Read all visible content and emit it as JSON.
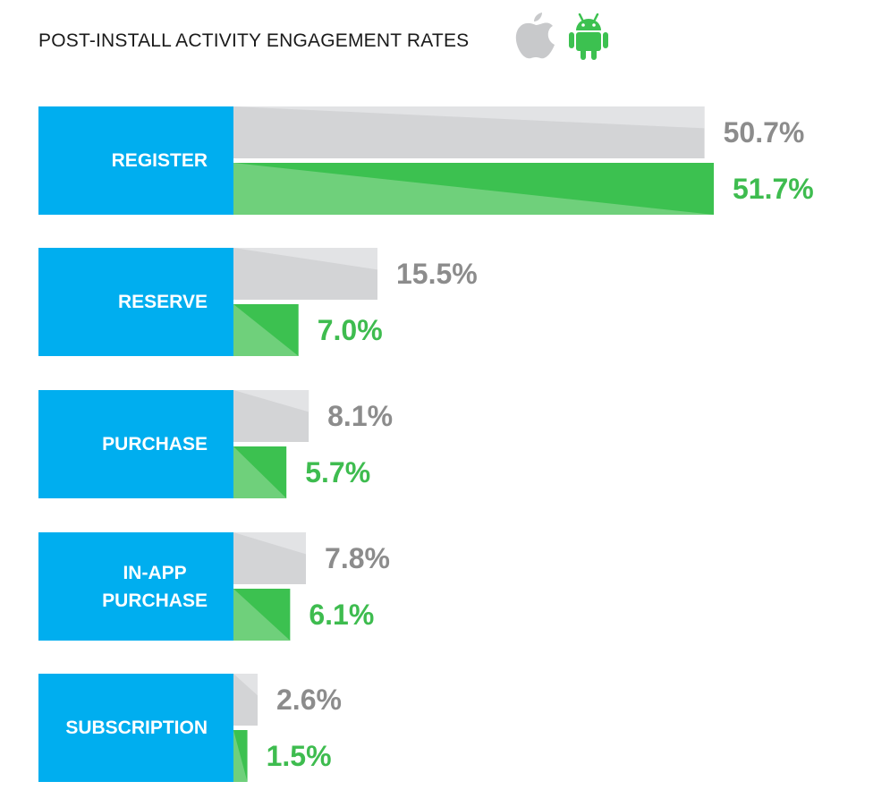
{
  "title": "POST-INSTALL ACTIVITY ENGAGEMENT RATES",
  "icons": {
    "ios": "apple-icon",
    "android": "android-icon"
  },
  "colors": {
    "label_bg": "#00aeef",
    "ios_bar": "#d3d4d6",
    "ios_bar_light": "#e2e3e5",
    "android_bar": "#3cc150",
    "android_bar_light": "#6fd07b",
    "ios_text": "#8c8c8c",
    "android_text": "#3ebc4f"
  },
  "chart_data": {
    "type": "bar",
    "title": "POST-INSTALL ACTIVITY ENGAGEMENT RATES",
    "orientation": "horizontal",
    "categories": [
      "REGISTER",
      "RESERVE",
      "PURCHASE",
      "IN-APP PURCHASE",
      "SUBSCRIPTION"
    ],
    "category_lines": [
      [
        "REGISTER"
      ],
      [
        "RESERVE"
      ],
      [
        "PURCHASE"
      ],
      [
        "IN-APP",
        "PURCHASE"
      ],
      [
        "SUBSCRIPTION"
      ]
    ],
    "series": [
      {
        "platform": "ios",
        "values": [
          50.7,
          15.5,
          8.1,
          7.8,
          2.6
        ],
        "labels": [
          "50.7%",
          "15.5%",
          "8.1%",
          "7.8%",
          "2.6%"
        ]
      },
      {
        "platform": "android",
        "values": [
          51.7,
          7.0,
          5.7,
          6.1,
          1.5
        ],
        "labels": [
          "51.7%",
          "7.0%",
          "5.7%",
          "6.1%",
          "1.5%"
        ]
      }
    ],
    "unit": "%",
    "xlim": [
      0,
      51.7
    ]
  }
}
